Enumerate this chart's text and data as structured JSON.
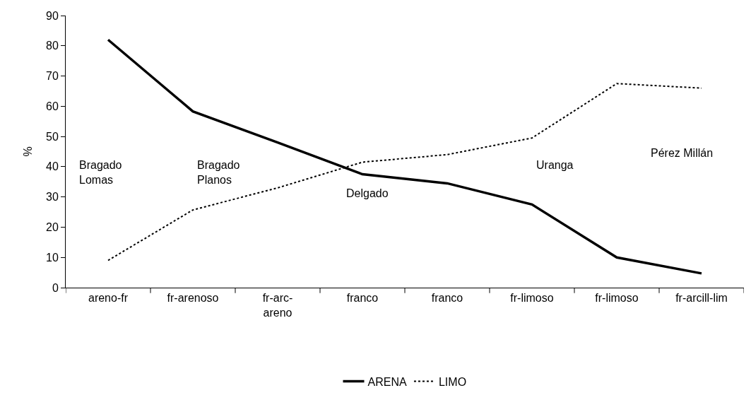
{
  "chart_data": {
    "type": "line",
    "ylabel": "%",
    "categories": [
      "areno-fr",
      "fr-arenoso",
      "fr-arc-areno",
      "franco",
      "franco",
      "fr-limoso",
      "fr-limoso",
      "fr-arcill-lim"
    ],
    "series": [
      {
        "name": "ARENA",
        "color": "#000000",
        "line_style": "solid",
        "values": [
          82,
          58.3,
          48,
          37.5,
          34.5,
          27.5,
          10,
          4.7
        ]
      },
      {
        "name": "LIMO",
        "color": "#000000",
        "line_style": "dotted",
        "values": [
          9,
          25.7,
          33,
          41.5,
          44,
          49.5,
          67.5,
          66
        ]
      }
    ],
    "ylim": [
      0,
      90
    ],
    "yticks": [
      0,
      10,
      20,
      30,
      40,
      50,
      60,
      70,
      80,
      90
    ],
    "annotations": [
      "Bragado\nLomas",
      "Bragado\nPlanos",
      "Delgado",
      "Uranga",
      "Pérez Millán"
    ],
    "grid": false,
    "legend": "bottom",
    "marker": "none"
  }
}
